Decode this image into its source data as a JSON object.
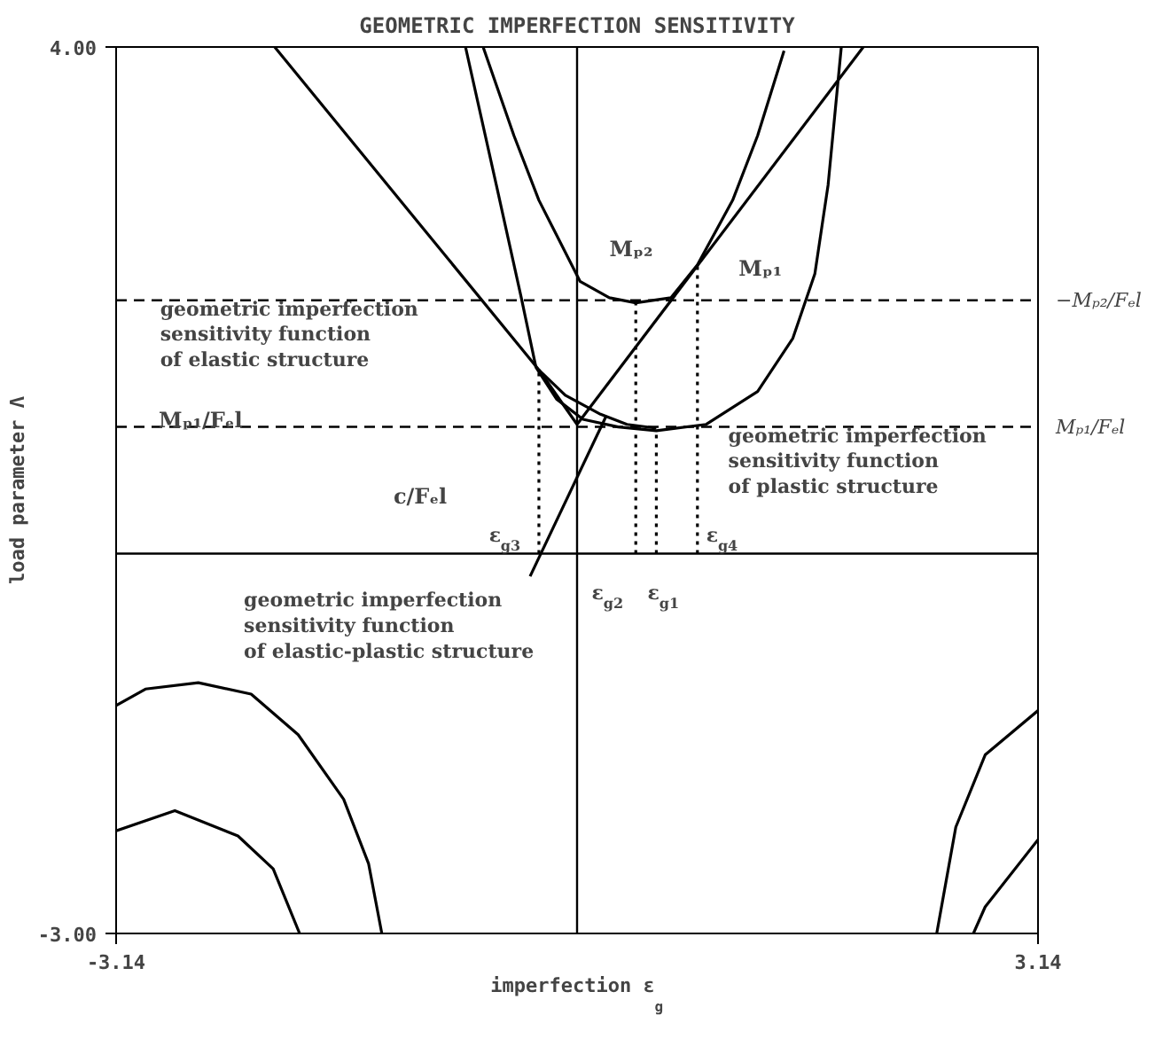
{
  "chart_data": {
    "type": "line",
    "title": "GEOMETRIC IMPERFECTION SENSITIVITY",
    "xlabel": "imperfection ε$_{g}$",
    "ylabel": "load parameter Λ",
    "xlim": [
      -3.14,
      3.14
    ],
    "ylim": [
      -3.0,
      4.0
    ],
    "xticks": [
      {
        "value": -3.14,
        "label": "-3.14"
      },
      {
        "value": 3.14,
        "label": "3.14"
      }
    ],
    "yticks": [
      {
        "value": -3.0,
        "label": "-3.00"
      },
      {
        "value": 4.0,
        "label": "4.00"
      }
    ],
    "series": [
      {
        "color": "#000000",
        "x": [
          -2.06,
          -0.26,
          0.0
        ],
        "values": [
          4.0,
          1.45,
          1.02
        ]
      },
      {
        "color": "#000000",
        "x": [
          0.0,
          1.95
        ],
        "values": [
          1.02,
          4.0
        ]
      },
      {
        "color": "#000000",
        "x": [
          -0.26,
          -0.08,
          0.16,
          0.34,
          0.54
        ],
        "values": [
          1.45,
          1.25,
          1.1,
          1.02,
          0.99
        ]
      },
      {
        "color": "#000000",
        "x": [
          -0.32,
          0.2
        ],
        "values": [
          -0.18,
          1.09
        ]
      },
      {
        "color": "#000000",
        "x": [
          -0.64,
          -0.43,
          -0.26,
          0.02,
          0.22,
          0.4,
          0.64,
          0.82,
          1.06,
          1.23,
          1.41
        ],
        "values": [
          4.0,
          3.3,
          2.79,
          2.15,
          2.02,
          1.98,
          2.02,
          2.28,
          2.79,
          3.3,
          3.97
        ]
      },
      {
        "color": "#000000",
        "x": [
          -0.76,
          -0.55,
          -0.38,
          -0.28,
          -0.14,
          0.04,
          0.28,
          0.54,
          0.88,
          1.23,
          1.47,
          1.62,
          1.71,
          1.8
        ],
        "values": [
          4.0,
          2.91,
          2.02,
          1.47,
          1.22,
          1.06,
          1.0,
          0.97,
          1.02,
          1.28,
          1.7,
          2.21,
          2.91,
          4.0
        ]
      },
      {
        "color": "#000000",
        "x": [
          -3.14,
          -2.94,
          -2.58,
          -2.22,
          -1.9,
          -1.59,
          -1.42,
          -1.33
        ],
        "values": [
          -1.2,
          -1.07,
          -1.02,
          -1.11,
          -1.43,
          -1.94,
          -2.45,
          -3.0
        ]
      },
      {
        "color": "#000000",
        "x": [
          -3.14,
          -2.74,
          -2.31,
          -2.07,
          -1.89
        ],
        "values": [
          -2.19,
          -2.03,
          -2.23,
          -2.49,
          -3.0
        ]
      },
      {
        "color": "#000000",
        "x": [
          3.14,
          2.78,
          2.58,
          2.45
        ],
        "values": [
          -1.24,
          -1.59,
          -2.16,
          -3.0
        ]
      },
      {
        "color": "#000000",
        "x": [
          3.14,
          2.78,
          2.7
        ],
        "values": [
          -2.26,
          -2.79,
          -3.0
        ]
      },
      {
        "color": "#000000",
        "line_style": "dotted",
        "x": [
          -0.26,
          -0.26
        ],
        "values": [
          0,
          1.45
        ]
      },
      {
        "color": "#000000",
        "line_style": "dotted",
        "x": [
          0.4,
          0.4
        ],
        "values": [
          0,
          1.98
        ]
      },
      {
        "color": "#000000",
        "line_style": "dotted",
        "x": [
          0.54,
          0.54
        ],
        "values": [
          0,
          0.97
        ]
      },
      {
        "color": "#000000",
        "line_style": "dotted",
        "x": [
          0.82,
          0.82
        ],
        "values": [
          0,
          2.28
        ]
      }
    ],
    "ref_lines": [
      {
        "axis": "y",
        "value": 0,
        "color": "#000000",
        "line_style": "solid"
      },
      {
        "axis": "x",
        "value": 0,
        "color": "#000000",
        "line_style": "solid"
      },
      {
        "axis": "y",
        "value": 2.0,
        "label": "−Mₚ₂/Fₑl",
        "color": "#000000",
        "line_style": "dashed"
      },
      {
        "axis": "y",
        "value": 1.0,
        "label": "Mₚ₁/Fₑl",
        "color": "#000000",
        "line_style": "dashed"
      }
    ],
    "annotations": [
      "geometric imperfection\nsensitivity function\nof elastic structure",
      "geometric imperfection\nsensitivity function\nof plastic structure",
      "geometric imperfection\nsensitivity function\nof elastic-plastic structure",
      "c/Fₑl",
      "Mₚ₁/Fₑl",
      "Mₚ₂",
      "Mₚ₁",
      "ε$_{g3}$",
      "ε$_{g2}$",
      "ε$_{g1}$",
      "ε$_{g4}$"
    ]
  }
}
